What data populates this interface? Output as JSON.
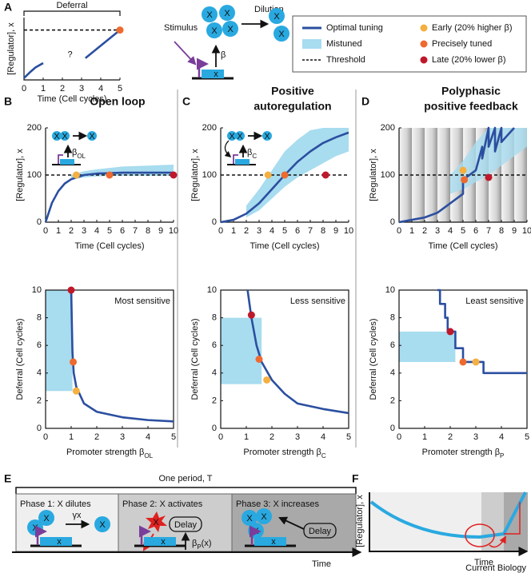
{
  "figure": {
    "panel_labels": [
      "A",
      "B",
      "C",
      "D",
      "E",
      "F"
    ],
    "legend": [
      {
        "name": "Optimal tuning",
        "color": "#2b4fa0"
      },
      {
        "name": "Mistuned",
        "color": "#a8dcef"
      },
      {
        "name": "Threshold",
        "color": "#111111"
      },
      {
        "name": "Early (20% higher β)",
        "color": "#f5b041"
      },
      {
        "name": "Precisely tuned",
        "color": "#ee6a2f"
      },
      {
        "name": "Late (20% lower β)",
        "color": "#c0182b"
      }
    ],
    "molecule": "X",
    "gene": "x",
    "stimulus": "Stimulus",
    "dilution": "Dilution",
    "beta": "β",
    "period": "One period, T",
    "phases": [
      "Phase 1: X dilutes",
      "Phase 2:  X activates",
      "Phase 3: X increases"
    ],
    "gamma": "γx",
    "delay": "Delay",
    "beta_p": [
      "β",
      "P",
      "(x)"
    ],
    "time": "Time",
    "f_ylabel": "[Regulator], x",
    "credit": "Current Biology"
  },
  "chart_data": [
    {
      "type": "line",
      "annotation": "Deferral",
      "question": "?",
      "xlabel": "Time (Cell cycles)",
      "ylabel": "[Regulator], x",
      "xlim": [
        0,
        5
      ],
      "xticks": [
        0,
        1,
        2,
        3,
        4,
        5
      ],
      "ylim": [
        0,
        1
      ],
      "threshold": 0.8,
      "x": [
        0,
        0.3,
        0.6,
        1,
        2,
        3.2,
        4,
        5
      ],
      "y": [
        0.03,
        0.12,
        0.2,
        0.27,
        null,
        0.35,
        0.55,
        0.8
      ],
      "markers": [
        {
          "x": 5,
          "y": 0.8
        }
      ],
      "marker_colors": [
        4
      ]
    },
    {
      "type": "line",
      "title": [
        "Open loop"
      ],
      "xlabel": "Time (Cell cycles)",
      "ylabel": "[Regulator], x",
      "inset_beta": [
        "β",
        "OL"
      ],
      "xlim": [
        0,
        10
      ],
      "xticks": [
        0,
        1,
        2,
        3,
        4,
        5,
        6,
        7,
        8,
        9,
        10
      ],
      "ylim": [
        0,
        200
      ],
      "yticks": [
        0,
        100,
        200
      ],
      "threshold": 100,
      "x": [
        0,
        0.5,
        1,
        1.5,
        2,
        3,
        4,
        5,
        6,
        8,
        10
      ],
      "y": [
        0,
        41,
        66,
        82,
        91,
        100,
        103,
        104,
        105,
        105,
        105
      ],
      "band": {
        "x": [
          2,
          3,
          4,
          5,
          6,
          8,
          10
        ],
        "lower": [
          90,
          95,
          97,
          98,
          98,
          98,
          98
        ],
        "upper": [
          100,
          108,
          112,
          115,
          118,
          120,
          122
        ]
      },
      "markers": [
        {
          "x": 2.4,
          "y": 100
        },
        {
          "x": 5,
          "y": 100
        },
        {
          "x": 10,
          "y": 100
        }
      ],
      "marker_colors": [
        3,
        4,
        5
      ]
    },
    {
      "type": "line",
      "xlabel": [
        "Promoter strength β",
        "OL"
      ],
      "ylabel": "Deferral (Cell cycles)",
      "annotation": "Most sensitive",
      "xlim": [
        0,
        5
      ],
      "xticks": [
        0,
        1,
        2,
        3,
        4,
        5
      ],
      "ylim": [
        0,
        10
      ],
      "yticks": [
        0,
        2,
        4,
        6,
        8,
        10
      ],
      "x": [
        1,
        1.05,
        1.1,
        1.2,
        1.5,
        2,
        3,
        4,
        5
      ],
      "y": [
        10,
        5.5,
        4,
        3,
        1.8,
        1.2,
        0.8,
        0.6,
        0.5
      ],
      "band_x": [
        0,
        1.05
      ],
      "band_y": [
        2.7,
        10
      ],
      "markers": [
        {
          "x": 1.2,
          "y": 2.7
        },
        {
          "x": 1.08,
          "y": 4.8
        },
        {
          "x": 1,
          "y": 10
        }
      ],
      "marker_colors": [
        3,
        4,
        5
      ]
    },
    {
      "type": "line",
      "title": [
        "Positive",
        "autoregulation"
      ],
      "xlabel": "Time (Cell cycles)",
      "ylabel": "[Regulator], x",
      "inset_beta": [
        "β",
        "C"
      ],
      "xlim": [
        0,
        10
      ],
      "xticks": [
        0,
        1,
        2,
        3,
        4,
        5,
        6,
        7,
        8,
        9,
        10
      ],
      "ylim": [
        0,
        200
      ],
      "yticks": [
        0,
        100,
        200
      ],
      "threshold": 100,
      "x": [
        0,
        1,
        2,
        3,
        4,
        5,
        6,
        7,
        8,
        9,
        10
      ],
      "y": [
        0,
        5,
        18,
        40,
        70,
        100,
        128,
        150,
        168,
        180,
        190
      ],
      "band": {
        "x": [
          2,
          3,
          4,
          5,
          6,
          7,
          8,
          9,
          10
        ],
        "lower": [
          10,
          25,
          50,
          75,
          95,
          110,
          125,
          140,
          150
        ],
        "upper": [
          35,
          70,
          110,
          150,
          175,
          195,
          200,
          200,
          200
        ]
      },
      "markers": [
        {
          "x": 3.7,
          "y": 100
        },
        {
          "x": 5,
          "y": 100
        },
        {
          "x": 8.2,
          "y": 100
        }
      ],
      "marker_colors": [
        3,
        4,
        5
      ]
    },
    {
      "type": "line",
      "xlabel": [
        "Promoter strength β",
        "C"
      ],
      "ylabel": "Deferral (Cell cycles)",
      "annotation": "Less sensitive",
      "xlim": [
        0,
        5
      ],
      "xticks": [
        0,
        1,
        2,
        3,
        4,
        5
      ],
      "ylim": [
        0,
        10
      ],
      "yticks": [
        0,
        2,
        4,
        6,
        8,
        10
      ],
      "x": [
        1.05,
        1.2,
        1.4,
        1.6,
        2,
        2.5,
        3,
        4,
        5
      ],
      "y": [
        10,
        8,
        6,
        4.8,
        3.5,
        2.5,
        1.8,
        1.4,
        1.1
      ],
      "band_x": [
        0,
        1.6
      ],
      "band_y": [
        3.2,
        8
      ],
      "markers": [
        {
          "x": 1.8,
          "y": 3.5
        },
        {
          "x": 1.5,
          "y": 5
        },
        {
          "x": 1.2,
          "y": 8.2
        }
      ],
      "marker_colors": [
        3,
        4,
        5
      ]
    },
    {
      "type": "line",
      "title": [
        "Polyphasic",
        "positive feedback"
      ],
      "xlabel": "Time (Cell cycles)",
      "ylabel": "[Regulator], x",
      "xlim": [
        0,
        10
      ],
      "xticks": [
        0,
        1,
        2,
        3,
        4,
        5,
        6,
        7,
        8,
        9,
        10
      ],
      "ylim": [
        0,
        200
      ],
      "yticks": [
        0,
        100,
        200
      ],
      "threshold": 100,
      "x": [
        0,
        1,
        1,
        2,
        2,
        3,
        3,
        4,
        4,
        5,
        5,
        6,
        6,
        6.5,
        6.5,
        7,
        7,
        7.5,
        7.5,
        8,
        8,
        9
      ],
      "y": [
        0,
        5,
        5,
        10,
        10,
        20,
        20,
        40,
        40,
        60,
        90,
        110,
        110,
        160,
        135,
        200,
        160,
        200,
        150,
        200,
        170,
        200
      ],
      "band": {
        "x": [
          4,
          5,
          6,
          7,
          8,
          9,
          10
        ],
        "lower": [
          60,
          70,
          85,
          100,
          120,
          140,
          160
        ],
        "upper": [
          100,
          130,
          170,
          200,
          200,
          200,
          200
        ]
      },
      "markers": [
        {
          "x": 5,
          "y": 110
        },
        {
          "x": 5.1,
          "y": 90
        },
        {
          "x": 7,
          "y": 95
        }
      ],
      "marker_colors": [
        3,
        4,
        5
      ]
    },
    {
      "type": "step",
      "xlabel": [
        "Promoter strength β",
        "P"
      ],
      "ylabel": "Deferral (Cell cycles)",
      "annotation": "Least sensitive",
      "xlim": [
        0,
        5
      ],
      "xticks": [
        0,
        1,
        2,
        3,
        4,
        5
      ],
      "ylim": [
        0,
        10
      ],
      "yticks": [
        0,
        2,
        4,
        6,
        8,
        10
      ],
      "x": [
        1.5,
        1.6,
        1.6,
        1.8,
        1.8,
        1.9,
        1.9,
        2.2,
        2.2,
        2.5,
        2.5,
        3.2,
        3.2,
        3.3,
        3.3,
        5
      ],
      "y": [
        10,
        10,
        9,
        9,
        8,
        8,
        7,
        7,
        5.8,
        5.8,
        4.8,
        4.8,
        4.8,
        4.8,
        4,
        4
      ],
      "band_x": [
        0,
        2.2
      ],
      "band_y": [
        4.8,
        7
      ],
      "markers": [
        {
          "x": 3,
          "y": 4.8
        },
        {
          "x": 2.5,
          "y": 4.8
        },
        {
          "x": 2,
          "y": 7
        }
      ],
      "marker_colors": [
        3,
        4,
        5
      ]
    }
  ]
}
